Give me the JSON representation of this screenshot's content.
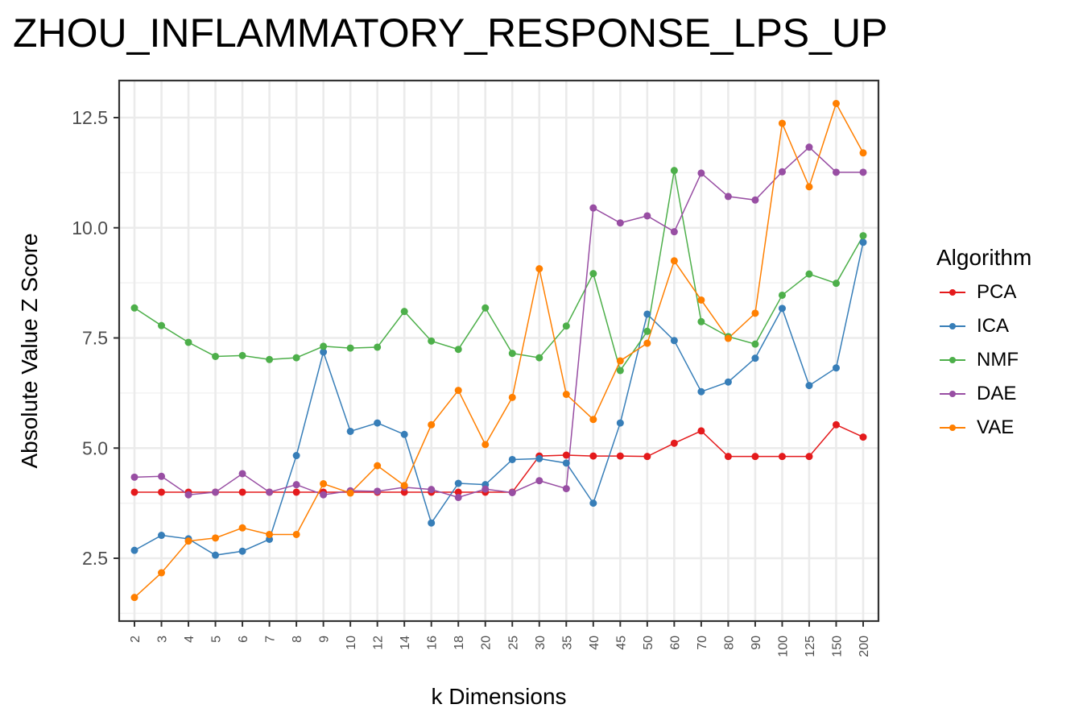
{
  "chart_data": {
    "type": "line",
    "title": "ZHOU_INFLAMMATORY_RESPONSE_LPS_UP",
    "xlabel": "k Dimensions",
    "ylabel": "Absolute Value Z Score",
    "categories": [
      "2",
      "3",
      "4",
      "5",
      "6",
      "7",
      "8",
      "9",
      "10",
      "12",
      "14",
      "16",
      "18",
      "20",
      "25",
      "30",
      "35",
      "40",
      "45",
      "50",
      "60",
      "70",
      "80",
      "90",
      "100",
      "125",
      "150",
      "200"
    ],
    "ylim": [
      1.2,
      13.3
    ],
    "yticks": [
      2.5,
      5.0,
      7.5,
      10.0,
      12.5
    ],
    "ytick_labels": [
      "2.5",
      "5.0",
      "7.5",
      "10.0",
      "12.5"
    ],
    "grid": true,
    "legend": {
      "title": "Algorithm",
      "position": "right"
    },
    "series": [
      {
        "name": "PCA",
        "color": "#E41A1C",
        "values": [
          4.0,
          4.0,
          4.0,
          4.0,
          4.0,
          4.0,
          4.0,
          4.0,
          4.0,
          4.0,
          4.0,
          4.0,
          4.0,
          4.0,
          4.0,
          4.82,
          4.84,
          4.82,
          4.82,
          4.81,
          5.11,
          5.39,
          4.81,
          4.81,
          4.81,
          4.81,
          5.53,
          5.25
        ]
      },
      {
        "name": "ICA",
        "color": "#377EB8",
        "values": [
          2.68,
          3.02,
          2.94,
          2.57,
          2.66,
          2.93,
          4.83,
          7.18,
          5.38,
          5.57,
          5.31,
          3.3,
          4.2,
          4.17,
          4.74,
          4.76,
          4.66,
          3.75,
          5.57,
          8.04,
          7.44,
          6.28,
          6.5,
          7.04,
          8.17,
          6.42,
          6.82,
          9.67
        ]
      },
      {
        "name": "NMF",
        "color": "#4DAF4A",
        "values": [
          8.18,
          7.78,
          7.4,
          7.08,
          7.1,
          7.01,
          7.05,
          7.31,
          7.27,
          7.29,
          8.1,
          7.43,
          7.24,
          8.18,
          7.15,
          7.05,
          7.77,
          8.96,
          6.76,
          7.65,
          11.3,
          7.87,
          7.53,
          7.36,
          8.47,
          8.95,
          8.74,
          9.82
        ]
      },
      {
        "name": "DAE",
        "color": "#984EA3",
        "values": [
          4.34,
          4.36,
          3.94,
          4.0,
          4.42,
          4.0,
          4.17,
          3.94,
          4.03,
          4.02,
          4.11,
          4.06,
          3.88,
          4.07,
          3.99,
          4.26,
          4.08,
          10.45,
          10.11,
          10.27,
          9.91,
          11.24,
          10.71,
          10.63,
          11.27,
          11.83,
          11.26,
          11.26
        ]
      },
      {
        "name": "VAE",
        "color": "#FF7F00",
        "values": [
          1.61,
          2.17,
          2.89,
          2.96,
          3.19,
          3.04,
          3.04,
          4.19,
          3.98,
          4.6,
          4.15,
          5.53,
          6.31,
          5.08,
          6.15,
          9.07,
          6.22,
          5.65,
          6.98,
          7.38,
          9.25,
          8.36,
          7.49,
          8.06,
          12.37,
          10.93,
          12.82,
          11.7
        ]
      }
    ]
  }
}
